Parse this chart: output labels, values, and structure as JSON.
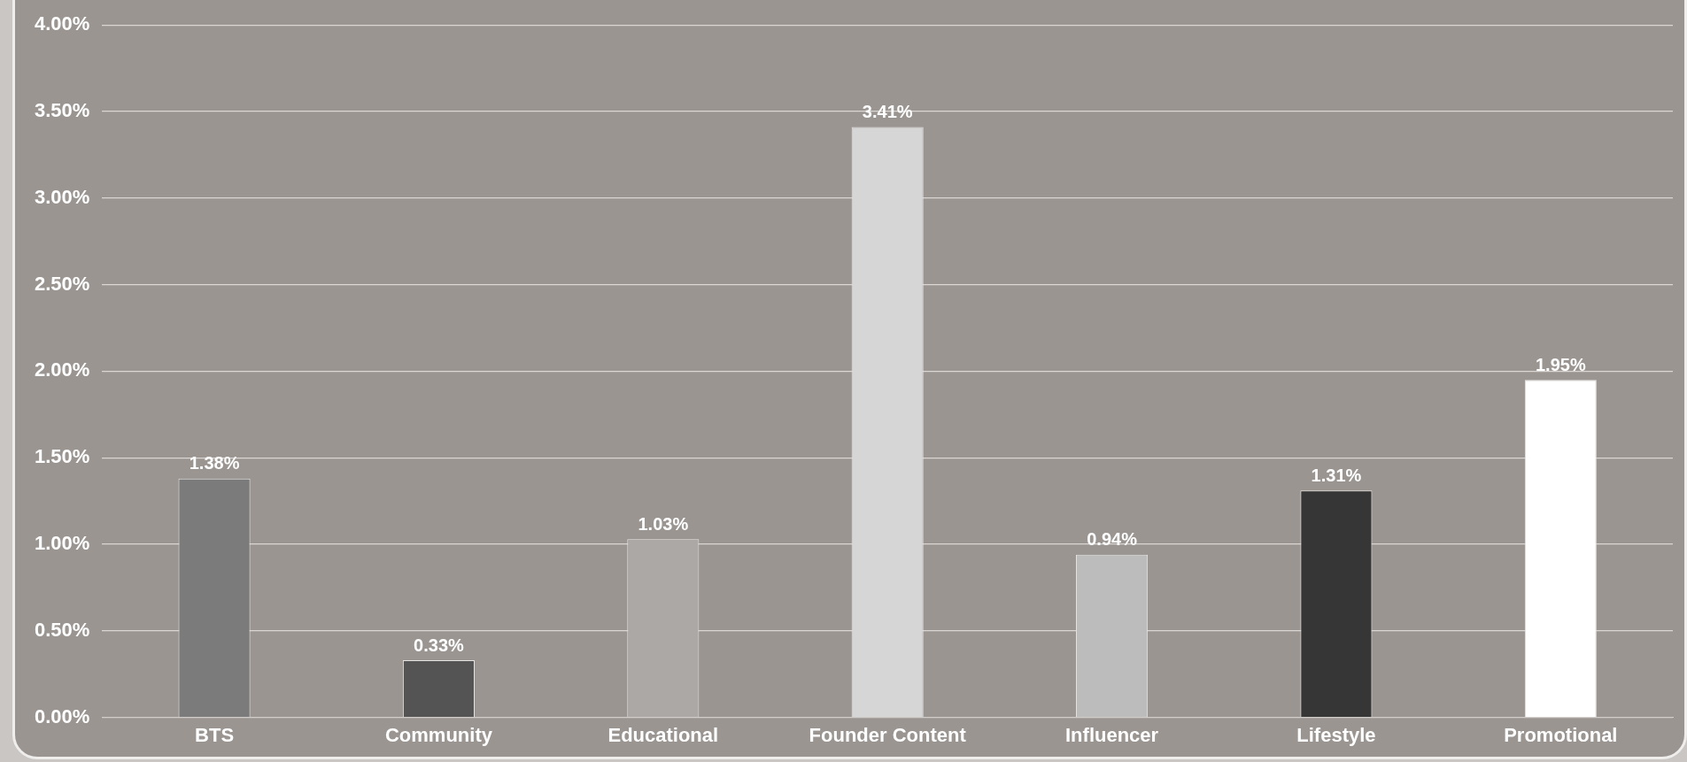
{
  "chart_data": {
    "type": "bar",
    "categories": [
      "BTS",
      "Community",
      "Educational",
      "Founder Content",
      "Influencer",
      "Lifestyle",
      "Promotional"
    ],
    "values": [
      1.38,
      0.33,
      1.03,
      3.41,
      0.94,
      1.31,
      1.95
    ],
    "colors": [
      "#7b7b7b",
      "#545454",
      "#aba8a6",
      "#d6d6d6",
      "#bcbcbc",
      "#363636",
      "#ffffff"
    ],
    "value_labels": [
      "1.38%",
      "0.33%",
      "1.03%",
      "3.41%",
      "0.94%",
      "1.31%",
      "1.95%"
    ],
    "ylim": [
      0,
      4
    ],
    "yticks": [
      {
        "value": 0,
        "label": "0.00%"
      },
      {
        "value": 0.5,
        "label": "0.50%"
      },
      {
        "value": 1,
        "label": "1.00%"
      },
      {
        "value": 1.5,
        "label": "1.50%"
      },
      {
        "value": 2,
        "label": "2.00%"
      },
      {
        "value": 2.5,
        "label": "2.50%"
      },
      {
        "value": 3,
        "label": "3.00%"
      },
      {
        "value": 3.5,
        "label": "3.50%"
      },
      {
        "value": 4,
        "label": "4.00%"
      }
    ],
    "grid": "y",
    "legend": false
  }
}
